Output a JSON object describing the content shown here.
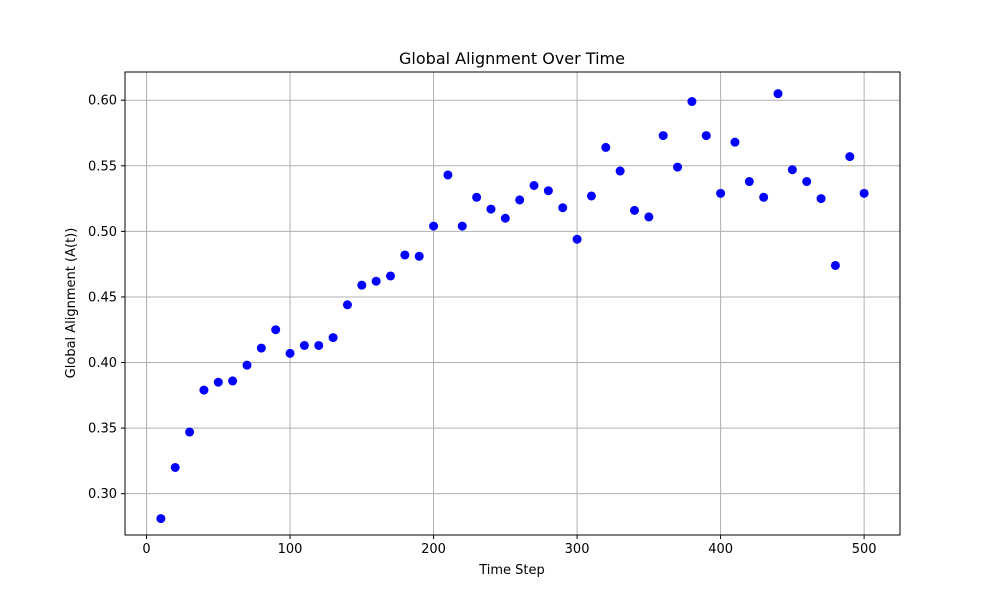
{
  "chart_data": {
    "type": "scatter",
    "title": "Global Alignment Over Time",
    "xlabel": "Time Step",
    "ylabel": "Global Alignment (A(t))",
    "xlim": [
      -15,
      525
    ],
    "ylim": [
      0.2685,
      0.6215
    ],
    "xticks": [
      0,
      100,
      200,
      300,
      400,
      500
    ],
    "xtick_labels": [
      "0",
      "100",
      "200",
      "300",
      "400",
      "500"
    ],
    "yticks": [
      0.3,
      0.35,
      0.4,
      0.45,
      0.5,
      0.55,
      0.6
    ],
    "ytick_labels": [
      "0.30",
      "0.35",
      "0.40",
      "0.45",
      "0.50",
      "0.55",
      "0.60"
    ],
    "grid": true,
    "marker_color": "#0000ff",
    "series": [
      {
        "x": [
          10,
          20,
          30,
          40,
          50,
          60,
          70,
          80,
          90,
          100,
          110,
          120,
          130,
          140,
          150,
          160,
          170,
          180,
          190,
          200,
          210,
          220,
          230,
          240,
          250,
          260,
          270,
          280,
          290,
          300,
          310,
          320,
          330,
          340,
          350,
          360,
          370,
          380,
          390,
          400,
          410,
          420,
          430,
          440,
          450,
          460,
          470,
          480,
          490,
          500
        ],
        "y": [
          0.281,
          0.32,
          0.347,
          0.379,
          0.385,
          0.386,
          0.398,
          0.411,
          0.425,
          0.407,
          0.413,
          0.413,
          0.419,
          0.444,
          0.459,
          0.462,
          0.466,
          0.482,
          0.481,
          0.504,
          0.543,
          0.504,
          0.526,
          0.517,
          0.51,
          0.524,
          0.535,
          0.531,
          0.518,
          0.494,
          0.527,
          0.564,
          0.546,
          0.516,
          0.511,
          0.573,
          0.549,
          0.599,
          0.573,
          0.529,
          0.568,
          0.538,
          0.526,
          0.605,
          0.547,
          0.538,
          0.525,
          0.474,
          0.557,
          0.529
        ]
      }
    ]
  }
}
